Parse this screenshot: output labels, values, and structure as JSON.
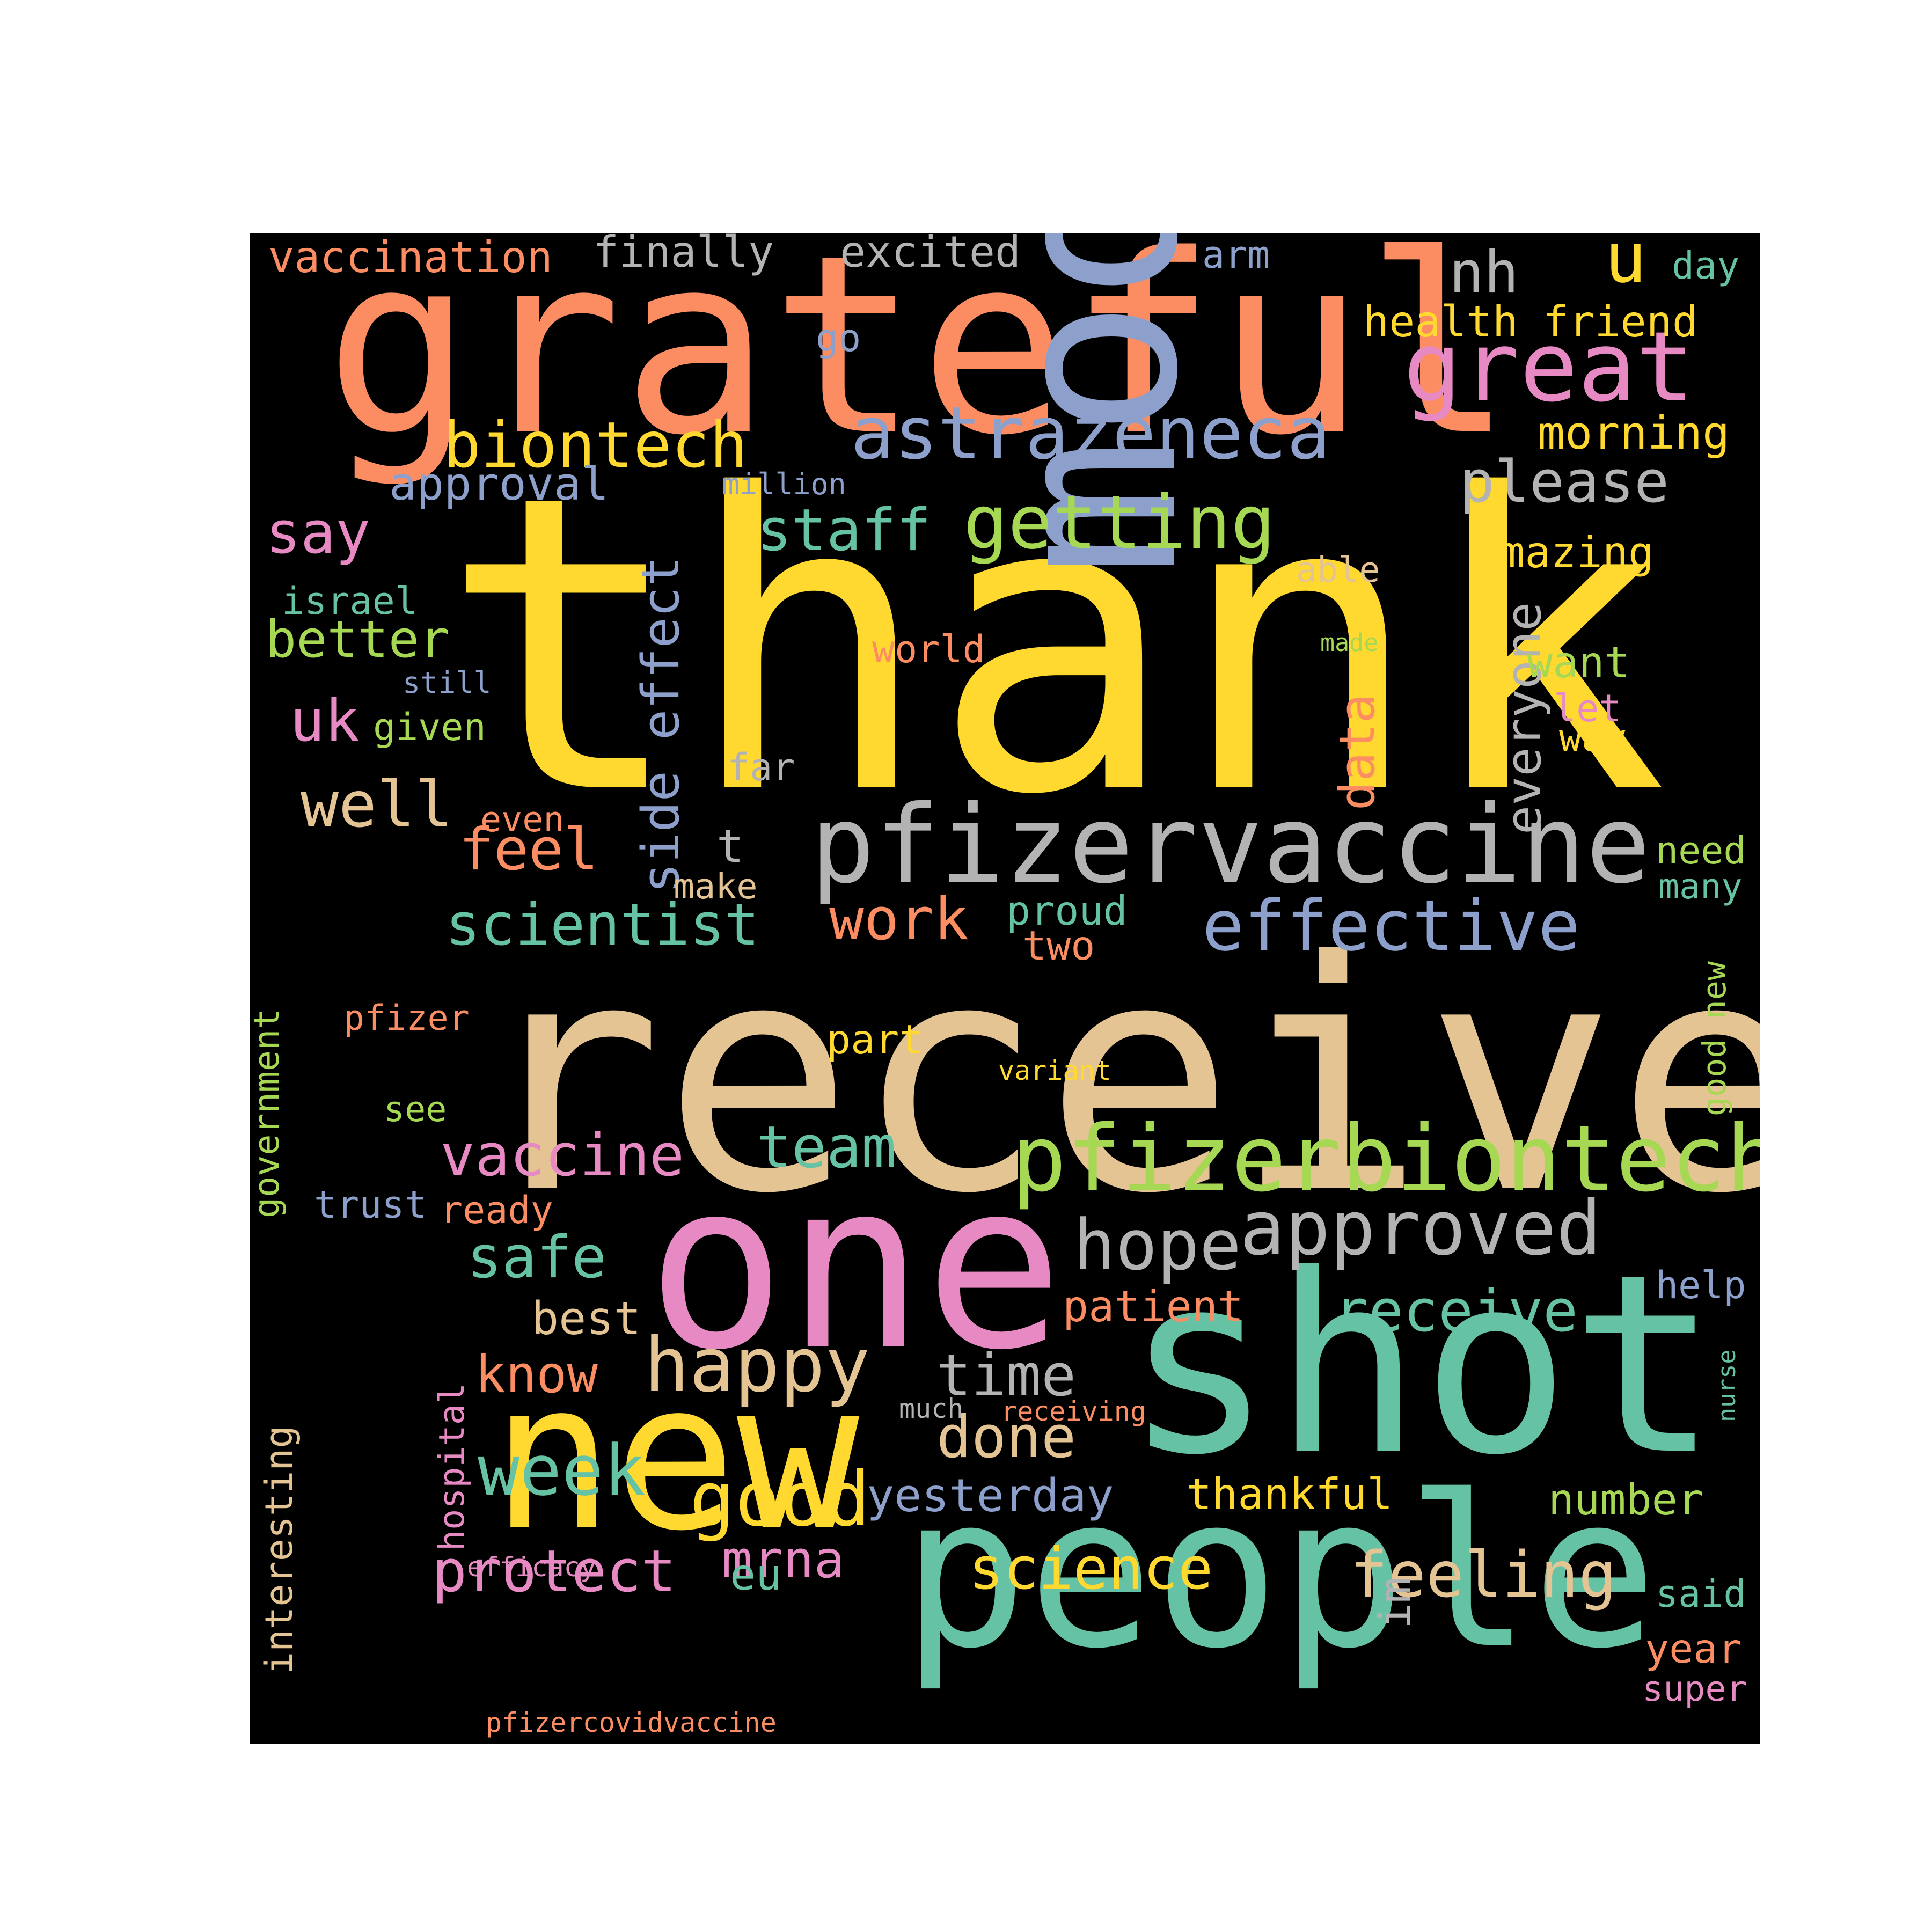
{
  "background_color": "#000000",
  "words": [
    {
      "text": "thank",
      "color": "#ffd92f"
    },
    {
      "text": "received",
      "color": "#e5c494"
    },
    {
      "text": "grateful",
      "color": "#fc8d62"
    },
    {
      "text": "moderna",
      "color": "#8da0cb",
      "vertical": true
    },
    {
      "text": "shot",
      "color": "#66c2a5"
    },
    {
      "text": "one",
      "color": "#e78ac3"
    },
    {
      "text": "new",
      "color": "#ffd92f"
    },
    {
      "text": "people",
      "color": "#66c2a5"
    },
    {
      "text": "pfizervaccine",
      "color": "#b3b3b3"
    },
    {
      "text": "pfizerbiontech",
      "color": "#a6d854"
    },
    {
      "text": "great",
      "color": "#e78ac3"
    },
    {
      "text": "astrazeneca",
      "color": "#8da0cb"
    },
    {
      "text": "biontech",
      "color": "#ffd92f"
    },
    {
      "text": "getting",
      "color": "#a6d854"
    },
    {
      "text": "effective",
      "color": "#8da0cb"
    },
    {
      "text": "approved",
      "color": "#b3b3b3"
    },
    {
      "text": "happy",
      "color": "#e5c494"
    },
    {
      "text": "hope",
      "color": "#b3b3b3"
    },
    {
      "text": "side effect",
      "color": "#8da0cb",
      "vertical": true
    },
    {
      "text": "scientist",
      "color": "#66c2a5"
    },
    {
      "text": "vaccine",
      "color": "#e78ac3"
    },
    {
      "text": "receive",
      "color": "#66c2a5"
    },
    {
      "text": "good",
      "color": "#ffd92f"
    },
    {
      "text": "week",
      "color": "#66c2a5"
    },
    {
      "text": "science",
      "color": "#ffd92f"
    },
    {
      "text": "feeling",
      "color": "#e5c494"
    },
    {
      "text": "protect",
      "color": "#e78ac3"
    },
    {
      "text": "please",
      "color": "#b3b3b3"
    },
    {
      "text": "everyone",
      "color": "#b3b3b3",
      "vertical": true
    },
    {
      "text": "time",
      "color": "#b3b3b3"
    },
    {
      "text": "done",
      "color": "#e5c494"
    },
    {
      "text": "team",
      "color": "#66c2a5"
    },
    {
      "text": "yesterday",
      "color": "#8da0cb"
    },
    {
      "text": "well",
      "color": "#e5c494"
    },
    {
      "text": "feel",
      "color": "#fc8d62"
    },
    {
      "text": "work",
      "color": "#fc8d62"
    },
    {
      "text": "staff",
      "color": "#66c2a5"
    },
    {
      "text": "say",
      "color": "#e78ac3"
    },
    {
      "text": "better",
      "color": "#a6d854"
    },
    {
      "text": "nh",
      "color": "#b3b3b3"
    },
    {
      "text": "u",
      "color": "#ffd92f"
    },
    {
      "text": "uk",
      "color": "#e78ac3"
    },
    {
      "text": "safe",
      "color": "#66c2a5"
    },
    {
      "text": "know",
      "color": "#fc8d62"
    },
    {
      "text": "best",
      "color": "#e5c494"
    },
    {
      "text": "mrna",
      "color": "#e78ac3"
    },
    {
      "text": "data",
      "color": "#fc8d62",
      "vertical": true
    },
    {
      "text": "approval",
      "color": "#8da0cb"
    },
    {
      "text": "morning",
      "color": "#ffd92f"
    },
    {
      "text": "amazing",
      "color": "#ffd92f"
    },
    {
      "text": "health",
      "color": "#ffd92f"
    },
    {
      "text": "friend",
      "color": "#ffd92f"
    },
    {
      "text": "vaccination",
      "color": "#fc8d62"
    },
    {
      "text": "finally",
      "color": "#b3b3b3"
    },
    {
      "text": "excited",
      "color": "#b3b3b3"
    },
    {
      "text": "arm",
      "color": "#8da0cb"
    },
    {
      "text": "day",
      "color": "#66c2a5"
    },
    {
      "text": "go",
      "color": "#8da0cb"
    },
    {
      "text": "million",
      "color": "#8da0cb"
    },
    {
      "text": "israel",
      "color": "#66c2a5"
    },
    {
      "text": "able",
      "color": "#e5c494"
    },
    {
      "text": "made",
      "color": "#a6d854"
    },
    {
      "text": "world",
      "color": "#fc8d62"
    },
    {
      "text": "still",
      "color": "#8da0cb"
    },
    {
      "text": "given",
      "color": "#a6d854"
    },
    {
      "text": "want",
      "color": "#a6d854"
    },
    {
      "text": "let",
      "color": "#e78ac3"
    },
    {
      "text": "way",
      "color": "#ffd92f"
    },
    {
      "text": "far",
      "color": "#b3b3b3"
    },
    {
      "text": "even",
      "color": "#fc8d62"
    },
    {
      "text": "t",
      "color": "#b3b3b3"
    },
    {
      "text": "make",
      "color": "#e5c494"
    },
    {
      "text": "need",
      "color": "#a6d854"
    },
    {
      "text": "many",
      "color": "#66c2a5"
    },
    {
      "text": "proud",
      "color": "#66c2a5"
    },
    {
      "text": "two",
      "color": "#fc8d62"
    },
    {
      "text": "government",
      "color": "#a6d854",
      "vertical": true
    },
    {
      "text": "pfizer",
      "color": "#fc8d62"
    },
    {
      "text": "part",
      "color": "#ffd92f"
    },
    {
      "text": "variant",
      "color": "#ffd92f"
    },
    {
      "text": "good new",
      "color": "#a6d854",
      "vertical": true
    },
    {
      "text": "see",
      "color": "#a6d854"
    },
    {
      "text": "trust",
      "color": "#8da0cb"
    },
    {
      "text": "ready",
      "color": "#fc8d62"
    },
    {
      "text": "patient",
      "color": "#fc8d62"
    },
    {
      "text": "help",
      "color": "#8da0cb"
    },
    {
      "text": "nurse",
      "color": "#66c2a5",
      "vertical": true
    },
    {
      "text": "much",
      "color": "#b3b3b3"
    },
    {
      "text": "receiving",
      "color": "#fc8d62"
    },
    {
      "text": "interesting",
      "color": "#e5c494",
      "vertical": true
    },
    {
      "text": "hospital",
      "color": "#e78ac3",
      "vertical": true
    },
    {
      "text": "thankful",
      "color": "#ffd92f"
    },
    {
      "text": "number",
      "color": "#a6d854"
    },
    {
      "text": "im",
      "color": "#b3b3b3",
      "vertical": true
    },
    {
      "text": "efficacy",
      "color": "#e78ac3"
    },
    {
      "text": "eu",
      "color": "#66c2a5"
    },
    {
      "text": "said",
      "color": "#66c2a5"
    },
    {
      "text": "year",
      "color": "#fc8d62"
    },
    {
      "text": "super",
      "color": "#e78ac3"
    },
    {
      "text": "pfizercovidvaccine",
      "color": "#fc8d62"
    }
  ]
}
